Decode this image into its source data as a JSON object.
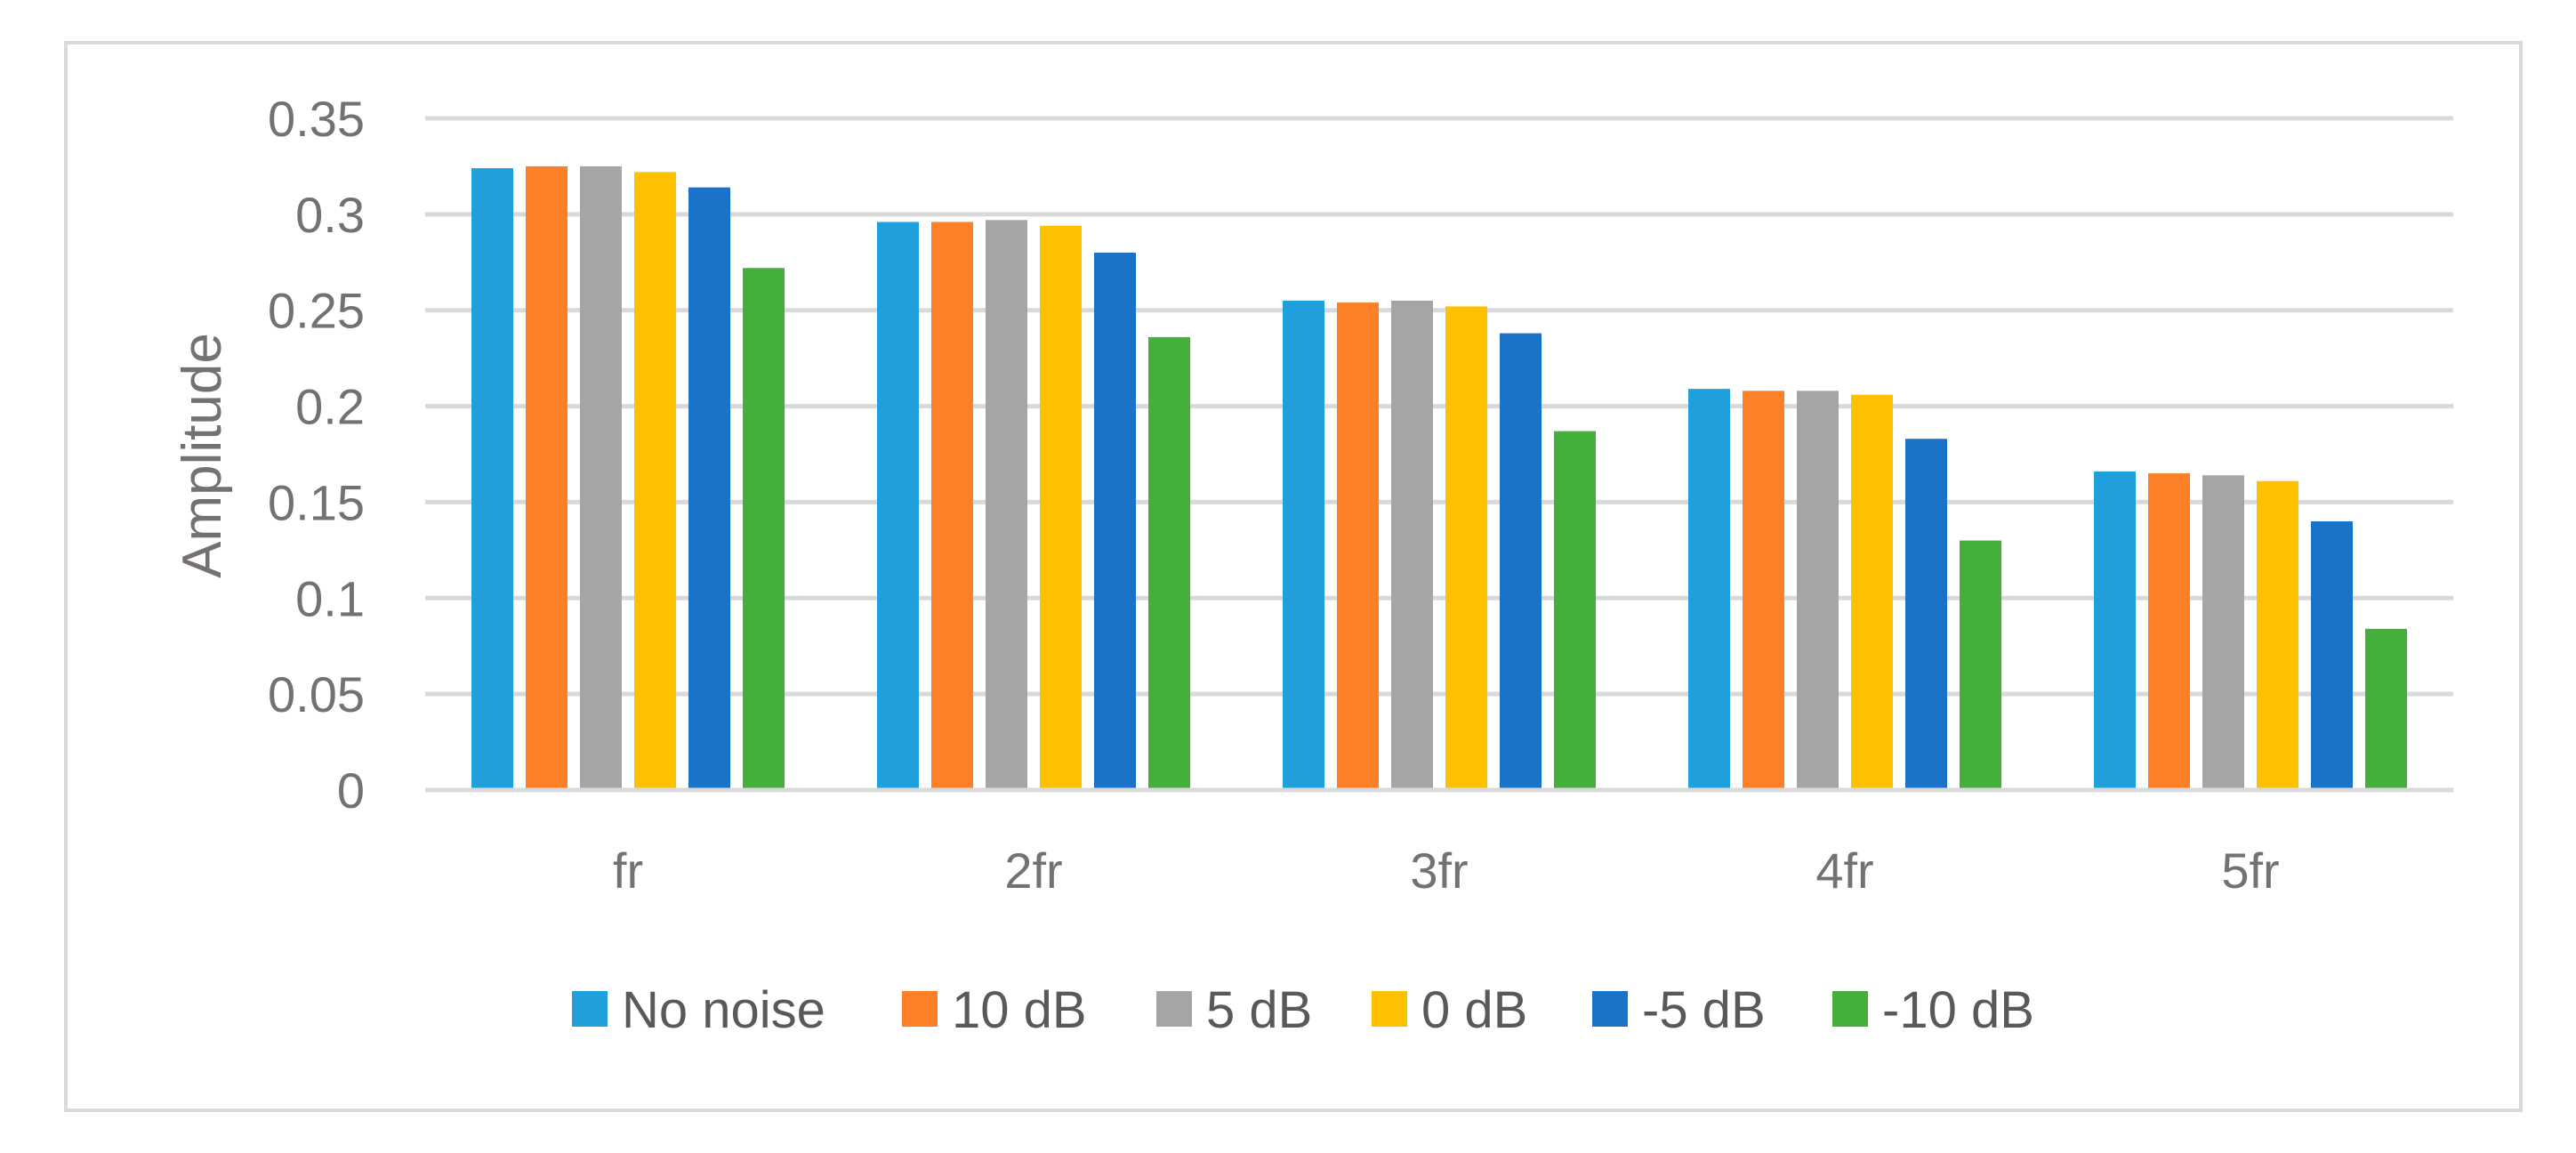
{
  "chart_data": {
    "type": "bar",
    "title": "",
    "xlabel": "",
    "ylabel": "Amplitude",
    "ylim": [
      0,
      0.35
    ],
    "yticks": [
      "0",
      "0.05",
      "0.1",
      "0.15",
      "0.2",
      "0.25",
      "0.3",
      "0.35"
    ],
    "ytick_values": [
      0,
      0.05,
      0.1,
      0.15,
      0.2,
      0.25,
      0.3,
      0.35
    ],
    "grid": true,
    "legend_position": "bottom",
    "categories": [
      "fr",
      "2fr",
      "3fr",
      "4fr",
      "5fr"
    ],
    "series": [
      {
        "name": "No noise",
        "color": "#1f9fdb",
        "values": [
          0.324,
          0.296,
          0.255,
          0.209,
          0.166
        ]
      },
      {
        "name": "10 dB",
        "color": "#fd7f28",
        "values": [
          0.325,
          0.296,
          0.254,
          0.208,
          0.165
        ]
      },
      {
        "name": "5 dB",
        "color": "#a5a5a5",
        "values": [
          0.325,
          0.297,
          0.255,
          0.208,
          0.164
        ]
      },
      {
        "name": "0 dB",
        "color": "#ffc000",
        "values": [
          0.322,
          0.294,
          0.252,
          0.206,
          0.161
        ]
      },
      {
        "name": "-5 dB",
        "color": "#1a73c9",
        "values": [
          0.314,
          0.28,
          0.238,
          0.183,
          0.14
        ]
      },
      {
        "name": "-10 dB",
        "color": "#44b03c",
        "values": [
          0.272,
          0.236,
          0.187,
          0.13,
          0.084
        ]
      }
    ]
  }
}
